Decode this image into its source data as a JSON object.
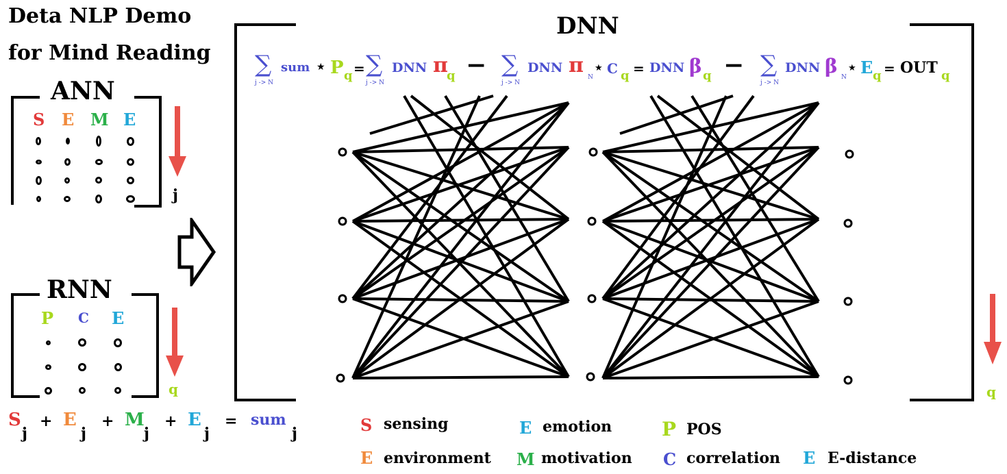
{
  "title_line1": "Deta NLP Demo",
  "title_line2": "for Mind Reading",
  "ann": {
    "title": "ANN",
    "cols": [
      "S",
      "E",
      "M",
      "E"
    ],
    "col_colors": [
      "#e23a3a",
      "#f08a3c",
      "#2bb04a",
      "#21a7d8"
    ],
    "index": "j"
  },
  "rnn": {
    "title": "RNN",
    "cols": [
      "P",
      "C",
      "E"
    ],
    "col_colors": [
      "#a8d81e",
      "#4a4fcf",
      "#21a7d8"
    ],
    "index": "q"
  },
  "dnn": {
    "title": "DNN",
    "index": "q"
  },
  "formula": {
    "sigma": "∑",
    "range": "j -> N",
    "sum": "sum",
    "star": "★",
    "P": "P",
    "q": "q",
    "eq": "=",
    "DNN": "DNN",
    "pi": "π",
    "minus": "−",
    "N": "N",
    "C": "C",
    "beta": "β",
    "E": "E",
    "OUT": "OUT"
  },
  "bottom_eq": {
    "S": "S",
    "E1": "E",
    "M": "M",
    "E2": "E",
    "j": "j",
    "plus": "+",
    "eq": "=",
    "sum": "sum"
  },
  "legend": [
    {
      "letter": "S",
      "label": "sensing",
      "color": "#e23a3a"
    },
    {
      "letter": "E",
      "label": "emotion",
      "color": "#21a7d8"
    },
    {
      "letter": "P",
      "label": "POS",
      "color": "#a8d81e"
    },
    {
      "letter": "E",
      "label": "environment",
      "color": "#f08a3c"
    },
    {
      "letter": "M",
      "label": "motivation",
      "color": "#2bb04a"
    },
    {
      "letter": "C",
      "label": "correlation",
      "color": "#4a4fcf"
    },
    {
      "letter": "E",
      "label": "E-distance",
      "color": "#21a7d8"
    }
  ],
  "colors": {
    "arrow": "#e8514a",
    "formula_blue": "#4a4fcf",
    "formula_green": "#a8d81e",
    "formula_red": "#e23a3a",
    "formula_purple": "#a03ad0",
    "formula_cyan": "#21a7d8"
  }
}
